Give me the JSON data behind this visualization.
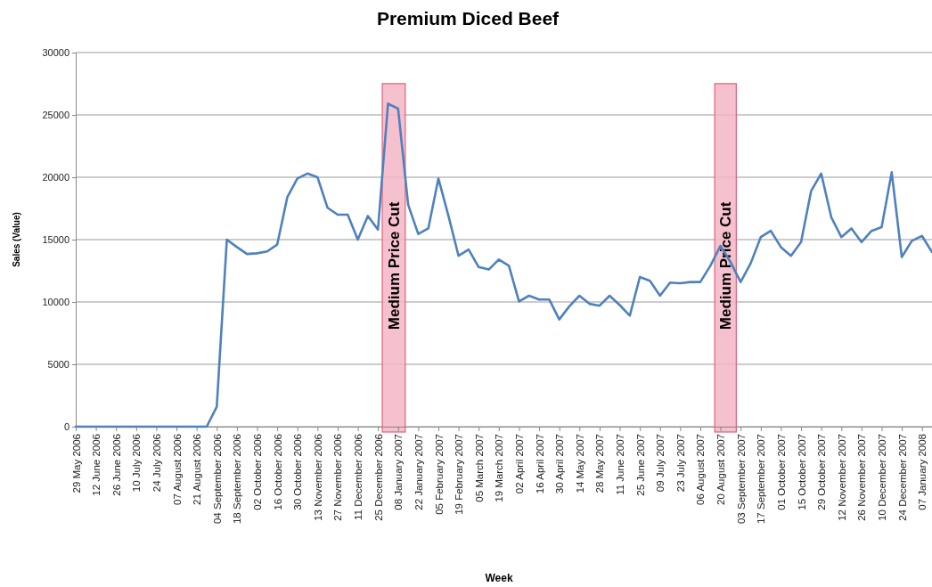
{
  "chart_data": {
    "type": "line",
    "title": "Premium Diced Beef",
    "xlabel": "Week",
    "ylabel": "Sales (Value)",
    "x": [
      "2006-05-29",
      "2006-06-05",
      "2006-06-12",
      "2006-06-19",
      "2006-06-26",
      "2006-07-03",
      "2006-07-10",
      "2006-07-17",
      "2006-07-24",
      "2006-07-31",
      "2006-08-07",
      "2006-08-14",
      "2006-08-21",
      "2006-08-28",
      "2006-09-04",
      "2006-09-11",
      "2006-09-18",
      "2006-09-25",
      "2006-10-02",
      "2006-10-09",
      "2006-10-16",
      "2006-10-23",
      "2006-10-30",
      "2006-11-06",
      "2006-11-13",
      "2006-11-20",
      "2006-11-27",
      "2006-12-04",
      "2006-12-11",
      "2006-12-18",
      "2006-12-25",
      "2007-01-01",
      "2007-01-08",
      "2007-01-15",
      "2007-01-22",
      "2007-01-29",
      "2007-02-05",
      "2007-02-12",
      "2007-02-19",
      "2007-02-26",
      "2007-03-05",
      "2007-03-12",
      "2007-03-19",
      "2007-03-26",
      "2007-04-02",
      "2007-04-09",
      "2007-04-16",
      "2007-04-23",
      "2007-04-30",
      "2007-05-07",
      "2007-05-14",
      "2007-05-21",
      "2007-05-28",
      "2007-06-04",
      "2007-06-11",
      "2007-06-18",
      "2007-06-25",
      "2007-07-02",
      "2007-07-09",
      "2007-07-16",
      "2007-07-23",
      "2007-07-30",
      "2007-08-06",
      "2007-08-13",
      "2007-08-20",
      "2007-08-27",
      "2007-09-03",
      "2007-09-10",
      "2007-09-17",
      "2007-09-24",
      "2007-10-01",
      "2007-10-08",
      "2007-10-15",
      "2007-10-22",
      "2007-10-29",
      "2007-11-05",
      "2007-11-12",
      "2007-11-19",
      "2007-11-26",
      "2007-12-03",
      "2007-12-10",
      "2007-12-17",
      "2007-12-24",
      "2007-12-31",
      "2008-01-07",
      "2008-01-14"
    ],
    "series": [
      {
        "color": "#4f81bd",
        "values": [
          0,
          0,
          0,
          0,
          0,
          0,
          0,
          0,
          0,
          0,
          0,
          0,
          0,
          0,
          1600,
          15000,
          14400,
          13850,
          13900,
          14050,
          14600,
          18400,
          19900,
          20300,
          20000,
          17550,
          17000,
          17000,
          15000,
          16900,
          15800,
          25900,
          25500,
          17800,
          15450,
          15900,
          19900,
          16900,
          13700,
          14200,
          12800,
          12600,
          13400,
          12900,
          10050,
          10500,
          10200,
          10200,
          8600,
          9650,
          10500,
          9850,
          9700,
          10500,
          9750,
          8900,
          12000,
          11700,
          10500,
          11550,
          11500,
          11600,
          11600,
          12900,
          14500,
          13200,
          11600,
          13100,
          15200,
          15700,
          14400,
          13700,
          14800,
          18900,
          20300,
          16800,
          15200,
          15900,
          14800,
          15700,
          16000,
          20400,
          13600,
          14900,
          15300,
          14000
        ]
      }
    ],
    "xlim": [
      "2006-05-29",
      "2008-01-14"
    ],
    "xticks": [
      {
        "value": "2006-05-29",
        "label": "29 May 2006"
      },
      {
        "value": "2006-06-12",
        "label": "12 June 2006"
      },
      {
        "value": "2006-06-26",
        "label": "26 June 2006"
      },
      {
        "value": "2006-07-10",
        "label": "10 July 2006"
      },
      {
        "value": "2006-07-24",
        "label": "24 July 2006"
      },
      {
        "value": "2006-08-07",
        "label": "07 August 2006"
      },
      {
        "value": "2006-08-21",
        "label": "21 August 2006"
      },
      {
        "value": "2006-09-04",
        "label": "04 September 2006"
      },
      {
        "value": "2006-09-18",
        "label": "18 September 2006"
      },
      {
        "value": "2006-10-02",
        "label": "02 October 2006"
      },
      {
        "value": "2006-10-16",
        "label": "16 October 2006"
      },
      {
        "value": "2006-10-30",
        "label": "30 October 2006"
      },
      {
        "value": "2006-11-13",
        "label": "13 November 2006"
      },
      {
        "value": "2006-11-27",
        "label": "27 November 2006"
      },
      {
        "value": "2006-12-11",
        "label": "11 December 2006"
      },
      {
        "value": "2006-12-25",
        "label": "25 December 2006"
      },
      {
        "value": "2007-01-08",
        "label": "08 January 2007"
      },
      {
        "value": "2007-01-22",
        "label": "22 January 2007"
      },
      {
        "value": "2007-02-05",
        "label": "05 February 2007"
      },
      {
        "value": "2007-02-19",
        "label": "19 February 2007"
      },
      {
        "value": "2007-03-05",
        "label": "05 March 2007"
      },
      {
        "value": "2007-03-19",
        "label": "19 March 2007"
      },
      {
        "value": "2007-04-02",
        "label": "02 April 2007"
      },
      {
        "value": "2007-04-16",
        "label": "16 April 2007"
      },
      {
        "value": "2007-04-30",
        "label": "30 April 2007"
      },
      {
        "value": "2007-05-14",
        "label": "14 May 2007"
      },
      {
        "value": "2007-05-28",
        "label": "28 May 2007"
      },
      {
        "value": "2007-06-11",
        "label": "11 June 2007"
      },
      {
        "value": "2007-06-25",
        "label": "25 June 2007"
      },
      {
        "value": "2007-07-09",
        "label": "09 July 2007"
      },
      {
        "value": "2007-07-23",
        "label": "23 July 2007"
      },
      {
        "value": "2007-08-06",
        "label": "06 August 2007"
      },
      {
        "value": "2007-08-20",
        "label": "20 August 2007"
      },
      {
        "value": "2007-09-03",
        "label": "03 September 2007"
      },
      {
        "value": "2007-09-17",
        "label": "17 September 2007"
      },
      {
        "value": "2007-10-01",
        "label": "01 October 2007"
      },
      {
        "value": "2007-10-15",
        "label": "15 October 2007"
      },
      {
        "value": "2007-10-29",
        "label": "29 October 2007"
      },
      {
        "value": "2007-11-12",
        "label": "12 November 2007"
      },
      {
        "value": "2007-11-26",
        "label": "26 November 2007"
      },
      {
        "value": "2007-12-10",
        "label": "10 December 2007"
      },
      {
        "value": "2007-12-24",
        "label": "24 December 2007"
      },
      {
        "value": "2008-01-07",
        "label": "07 January 2008"
      }
    ],
    "ylim": [
      0,
      30000
    ],
    "yticks": [
      0,
      5000,
      10000,
      15000,
      20000,
      25000,
      30000
    ],
    "grid": "y",
    "marker": "none",
    "line_style": "solid",
    "bands": [
      {
        "axis": "x",
        "from": "2006-12-28",
        "to": "2007-01-13",
        "label": "Medium Price Cut",
        "color": "#f4b6c6"
      },
      {
        "axis": "x",
        "from": "2007-08-16",
        "to": "2007-08-31",
        "label": "Medium Price Cut",
        "color": "#f4b6c6"
      }
    ]
  }
}
